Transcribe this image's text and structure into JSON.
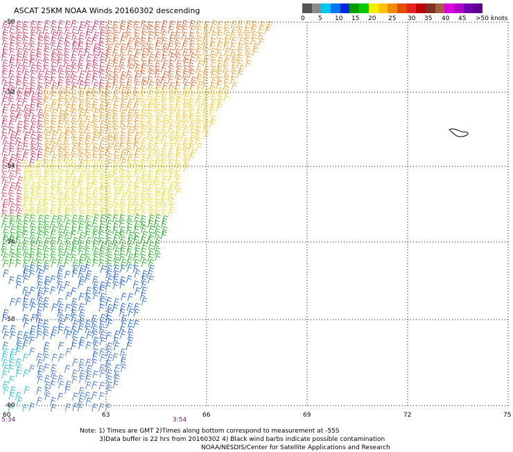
{
  "title": "ASCAT 25KM NOAA Winds 20160302 descending",
  "colorbar": {
    "colors": [
      "#555555",
      "#8a8a8a",
      "#00c8f0",
      "#0078f0",
      "#0028e0",
      "#00a000",
      "#00cc00",
      "#f0f000",
      "#ffc400",
      "#f08c00",
      "#e05000",
      "#e82020",
      "#c00000",
      "#803020",
      "#a06040",
      "#e000e0",
      "#b000c0",
      "#7000b0",
      "#600090"
    ],
    "labels": [
      "0",
      "5",
      "10",
      "15",
      "20",
      "25",
      "30",
      "35",
      "40",
      "45",
      ">50 knots"
    ]
  },
  "axes": {
    "lon_ticks": [
      "60",
      "63",
      "66",
      "69",
      "72",
      "75"
    ],
    "lat_ticks": [
      "-50",
      "-52",
      "-54",
      "-56",
      "-58",
      "-60"
    ]
  },
  "times": [
    "5:34",
    "3:54"
  ],
  "notes": [
    "Note: 1) Times are GMT 2)Times along bottom correspond to measurement at -55S",
    "3)Data buffer is 22 hrs from 20160302 4) Black wind barbs indicate possible contamination",
    "NOAA/NESDIS/Center for Satellite Applications and Research"
  ]
}
